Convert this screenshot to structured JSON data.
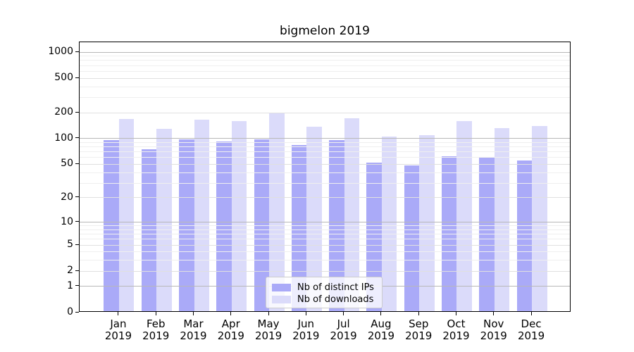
{
  "title": "bigmelon 2019",
  "chart_data": {
    "type": "bar",
    "title": "bigmelon 2019",
    "categories": [
      "Jan 2019",
      "Feb 2019",
      "Mar 2019",
      "Apr 2019",
      "May 2019",
      "Jun 2019",
      "Jul 2019",
      "Aug 2019",
      "Sep 2019",
      "Oct 2019",
      "Nov 2019",
      "Dec 2019"
    ],
    "x_tick_months": [
      "Jan",
      "Feb",
      "Mar",
      "Apr",
      "May",
      "Jun",
      "Jul",
      "Aug",
      "Sep",
      "Oct",
      "Nov",
      "Dec"
    ],
    "x_tick_year": "2019",
    "series": [
      {
        "name": "Nb of distinct IPs",
        "color": "#aaaaf8",
        "values": [
          93,
          73,
          95,
          89,
          95,
          81,
          93,
          50,
          47,
          60,
          59,
          53
        ]
      },
      {
        "name": "Nb of downloads",
        "color": "#dbdbfa",
        "values": [
          163,
          126,
          160,
          155,
          193,
          133,
          165,
          102,
          105,
          153,
          127,
          134
        ]
      }
    ],
    "yscale": "log1p",
    "ylim": [
      0,
      1300
    ],
    "yticks": [
      0,
      1,
      2,
      5,
      10,
      20,
      50,
      100,
      200,
      500,
      1000
    ],
    "minor_gridlines": [
      3,
      4,
      6,
      7,
      8,
      9,
      30,
      40,
      60,
      70,
      80,
      90,
      300,
      400,
      600,
      700,
      800,
      900
    ],
    "grid": "on",
    "grid_over_bars": true,
    "legend_position": "lower center"
  },
  "colors": {
    "bar_distinct_ips": "#aaaaf8",
    "bar_downloads": "#dbdbfa",
    "grid_power10": "#b8b8b8",
    "grid_labeled": "#e0e0e0",
    "grid_minor": "#efefef",
    "axis": "#000000",
    "legend_border": "#cccccc",
    "background": "#ffffff"
  }
}
